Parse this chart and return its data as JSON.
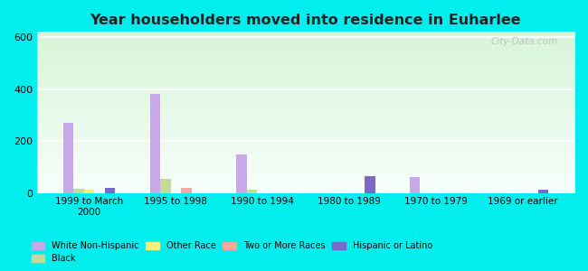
{
  "title": "Year householders moved into residence in Euharlee",
  "categories": [
    "1999 to March\n2000",
    "1995 to 1998",
    "1990 to 1994",
    "1980 to 1989",
    "1970 to 1979",
    "1969 or earlier"
  ],
  "series": {
    "White Non-Hispanic": [
      270,
      380,
      148,
      0,
      60,
      0
    ],
    "Black": [
      15,
      55,
      13,
      0,
      0,
      0
    ],
    "Other Race": [
      13,
      0,
      0,
      0,
      0,
      0
    ],
    "Two or More Races": [
      0,
      18,
      0,
      0,
      0,
      0
    ],
    "Hispanic or Latino": [
      20,
      0,
      0,
      65,
      0,
      13
    ]
  },
  "colors": {
    "White Non-Hispanic": "#c9a8e8",
    "Black": "#c8d89a",
    "Other Race": "#f5f07a",
    "Two or More Races": "#f5a8a0",
    "Hispanic or Latino": "#7b68c8"
  },
  "bar_width": 0.12,
  "ylim": [
    0,
    620
  ],
  "yticks": [
    0,
    200,
    400,
    600
  ],
  "outer_bg": "#00eeee",
  "watermark": "City-Data.com"
}
